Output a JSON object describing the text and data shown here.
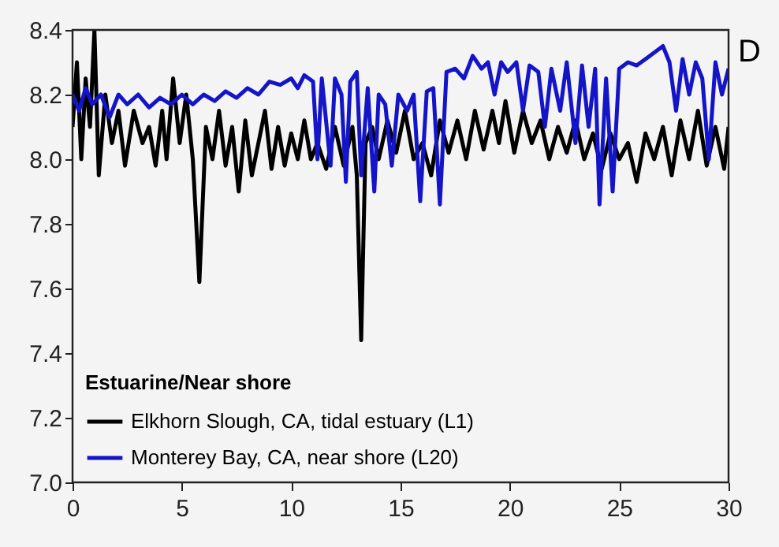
{
  "chart_data": {
    "type": "line",
    "legend_title": "Estuarine/Near shore",
    "legend": "bottom left",
    "grid": false,
    "marker": "none",
    "line_style": "solid",
    "xlim": [
      0,
      30
    ],
    "xticks": [
      0,
      5,
      10,
      15,
      20,
      25,
      30
    ],
    "ylim": [
      7.0,
      8.4
    ],
    "yticks": [
      {
        "value": 7,
        "label": "7.0"
      },
      7.2,
      7.4,
      7.6,
      7.8,
      {
        "value": 8,
        "label": "8.0"
      },
      8.2,
      8.4
    ],
    "annotations": [
      "D"
    ],
    "series": [
      {
        "name": "Elkhorn Slough, CA, tidal estuary (L1)",
        "color": "#000000",
        "x": [
          0,
          0.2,
          0.4,
          0.6,
          0.8,
          1.0,
          1.2,
          1.5,
          1.8,
          2.1,
          2.4,
          2.8,
          3.2,
          3.5,
          3.8,
          4.1,
          4.3,
          4.6,
          4.9,
          5.2,
          5.5,
          5.8,
          6.1,
          6.4,
          6.7,
          7.0,
          7.3,
          7.6,
          7.9,
          8.2,
          8.5,
          8.8,
          9.1,
          9.4,
          9.7,
          10.0,
          10.3,
          10.6,
          10.9,
          11.2,
          11.6,
          12.0,
          12.4,
          12.8,
          13.0,
          13.2,
          13.4,
          13.7,
          14.0,
          14.4,
          14.8,
          15.2,
          15.6,
          16.0,
          16.4,
          16.8,
          17.2,
          17.6,
          18.0,
          18.4,
          18.8,
          19.2,
          19.5,
          19.8,
          20.2,
          20.6,
          21.0,
          21.4,
          21.8,
          22.2,
          22.6,
          23.0,
          23.4,
          23.8,
          24.2,
          24.6,
          25.0,
          25.4,
          25.8,
          26.2,
          26.6,
          27.0,
          27.4,
          27.8,
          28.2,
          28.6,
          29.0,
          29.4,
          29.8,
          30.0
        ],
        "values": [
          8.1,
          8.3,
          8.0,
          8.25,
          8.1,
          8.4,
          7.95,
          8.2,
          8.05,
          8.15,
          7.98,
          8.15,
          8.05,
          8.1,
          7.98,
          8.15,
          8.0,
          8.25,
          8.05,
          8.2,
          8.0,
          7.62,
          8.1,
          8.0,
          8.15,
          7.98,
          8.1,
          7.9,
          8.12,
          7.95,
          8.05,
          8.15,
          7.97,
          8.1,
          7.98,
          8.08,
          8.0,
          8.12,
          8.0,
          8.05,
          7.97,
          8.1,
          7.98,
          8.1,
          7.95,
          7.44,
          8.05,
          8.1,
          8.0,
          8.12,
          8.02,
          8.15,
          8.0,
          8.05,
          7.95,
          8.12,
          8.02,
          8.12,
          8.0,
          8.15,
          8.03,
          8.15,
          8.05,
          8.18,
          8.02,
          8.15,
          8.05,
          8.12,
          8.0,
          8.1,
          8.02,
          8.12,
          8.0,
          8.08,
          7.97,
          8.08,
          8.0,
          8.05,
          7.93,
          8.08,
          8.0,
          8.1,
          7.95,
          8.12,
          8.0,
          8.15,
          7.98,
          8.1,
          7.97,
          8.1
        ]
      },
      {
        "name": "Monterey Bay, CA, near shore (L20)",
        "color": "#1414c8",
        "x": [
          0,
          0.3,
          0.6,
          0.9,
          1.3,
          1.7,
          2.1,
          2.5,
          3,
          3.5,
          4,
          4.5,
          5,
          5.5,
          6,
          6.5,
          7,
          7.5,
          8,
          8.5,
          9,
          9.5,
          10,
          10.3,
          10.6,
          11,
          11.2,
          11.4,
          11.8,
          12,
          12.3,
          12.5,
          12.7,
          13,
          13.2,
          13.5,
          13.8,
          14.0,
          14.3,
          14.6,
          14.9,
          15.3,
          15.6,
          15.9,
          16.2,
          16.5,
          16.8,
          17.1,
          17.5,
          17.9,
          18.3,
          18.7,
          19.0,
          19.3,
          19.6,
          19.9,
          20.3,
          20.6,
          20.9,
          21.3,
          21.6,
          21.9,
          22.3,
          22.6,
          23.0,
          23.3,
          23.6,
          23.9,
          24.1,
          24.4,
          24.7,
          25.0,
          25.4,
          25.8,
          26.2,
          26.6,
          27.0,
          27.3,
          27.6,
          27.9,
          28.2,
          28.5,
          28.8,
          29.1,
          29.4,
          29.7,
          30
        ],
        "values": [
          8.2,
          8.15,
          8.22,
          8.17,
          8.2,
          8.13,
          8.2,
          8.17,
          8.2,
          8.16,
          8.19,
          8.17,
          8.2,
          8.17,
          8.2,
          8.18,
          8.21,
          8.19,
          8.22,
          8.2,
          8.24,
          8.23,
          8.25,
          8.22,
          8.26,
          8.24,
          8.0,
          8.25,
          7.98,
          8.25,
          8.2,
          7.93,
          8.24,
          8.27,
          7.95,
          8.22,
          7.9,
          8.2,
          8.17,
          7.98,
          8.2,
          8.15,
          8.2,
          7.87,
          8.21,
          8.22,
          7.86,
          8.27,
          8.28,
          8.25,
          8.32,
          8.28,
          8.3,
          8.2,
          8.3,
          8.27,
          8.3,
          8.15,
          8.29,
          8.27,
          8.1,
          8.28,
          8.15,
          8.3,
          8.05,
          8.29,
          8.1,
          8.28,
          7.86,
          8.25,
          7.9,
          8.28,
          8.3,
          8.29,
          8.31,
          8.33,
          8.35,
          8.3,
          8.15,
          8.31,
          8.2,
          8.3,
          8.25,
          8.0,
          8.3,
          8.2,
          8.28
        ]
      }
    ]
  }
}
